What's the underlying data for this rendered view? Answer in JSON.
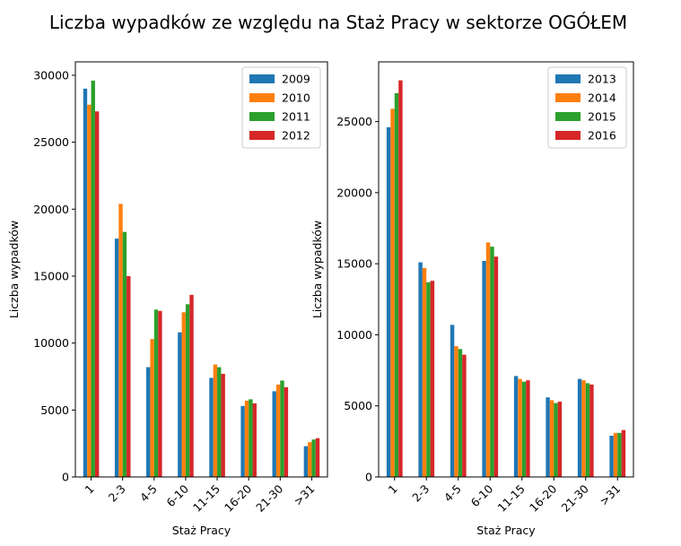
{
  "figure_title": "Liczba wypadków ze względu na Staż Pracy w sektorze OGÓŁEM",
  "chart_data": [
    {
      "type": "bar",
      "xlabel": "Staż Pracy",
      "ylabel": "Liczba wypadków",
      "categories": [
        "1",
        "2-3",
        "4-5",
        "6-10",
        "11-15",
        "16-20",
        "21-30",
        ">31"
      ],
      "ylim": [
        0,
        31000
      ],
      "yticks": [
        0,
        5000,
        10000,
        15000,
        20000,
        25000,
        30000
      ],
      "legend": "top-right",
      "grid": false,
      "series": [
        {
          "name": "2009",
          "color": "#1f77b4",
          "values": [
            29000,
            17800,
            8200,
            10800,
            7400,
            5300,
            6400,
            2300
          ]
        },
        {
          "name": "2010",
          "color": "#ff7f0e",
          "values": [
            27800,
            20400,
            10300,
            12300,
            8400,
            5700,
            6900,
            2600
          ]
        },
        {
          "name": "2011",
          "color": "#2ca02c",
          "values": [
            29600,
            18300,
            12500,
            12900,
            8200,
            5800,
            7200,
            2800
          ]
        },
        {
          "name": "2012",
          "color": "#d62728",
          "values": [
            27300,
            15000,
            12400,
            13600,
            7700,
            5500,
            6700,
            2900
          ]
        }
      ]
    },
    {
      "type": "bar",
      "xlabel": "Staż Pracy",
      "ylabel": "Liczba wypadków",
      "categories": [
        "1",
        "2-3",
        "4-5",
        "6-10",
        "11-15",
        "16-20",
        "21-30",
        ">31"
      ],
      "ylim": [
        0,
        29200
      ],
      "yticks": [
        0,
        5000,
        10000,
        15000,
        20000,
        25000
      ],
      "legend": "top-right",
      "grid": false,
      "series": [
        {
          "name": "2013",
          "color": "#1f77b4",
          "values": [
            24600,
            15100,
            10700,
            15200,
            7100,
            5600,
            6900,
            2900
          ]
        },
        {
          "name": "2014",
          "color": "#ff7f0e",
          "values": [
            25900,
            14700,
            9200,
            16500,
            6900,
            5400,
            6800,
            3100
          ]
        },
        {
          "name": "2015",
          "color": "#2ca02c",
          "values": [
            27000,
            13700,
            9000,
            16200,
            6700,
            5200,
            6600,
            3100
          ]
        },
        {
          "name": "2016",
          "color": "#d62728",
          "values": [
            27900,
            13800,
            8600,
            15500,
            6800,
            5300,
            6500,
            3300
          ]
        }
      ]
    }
  ]
}
